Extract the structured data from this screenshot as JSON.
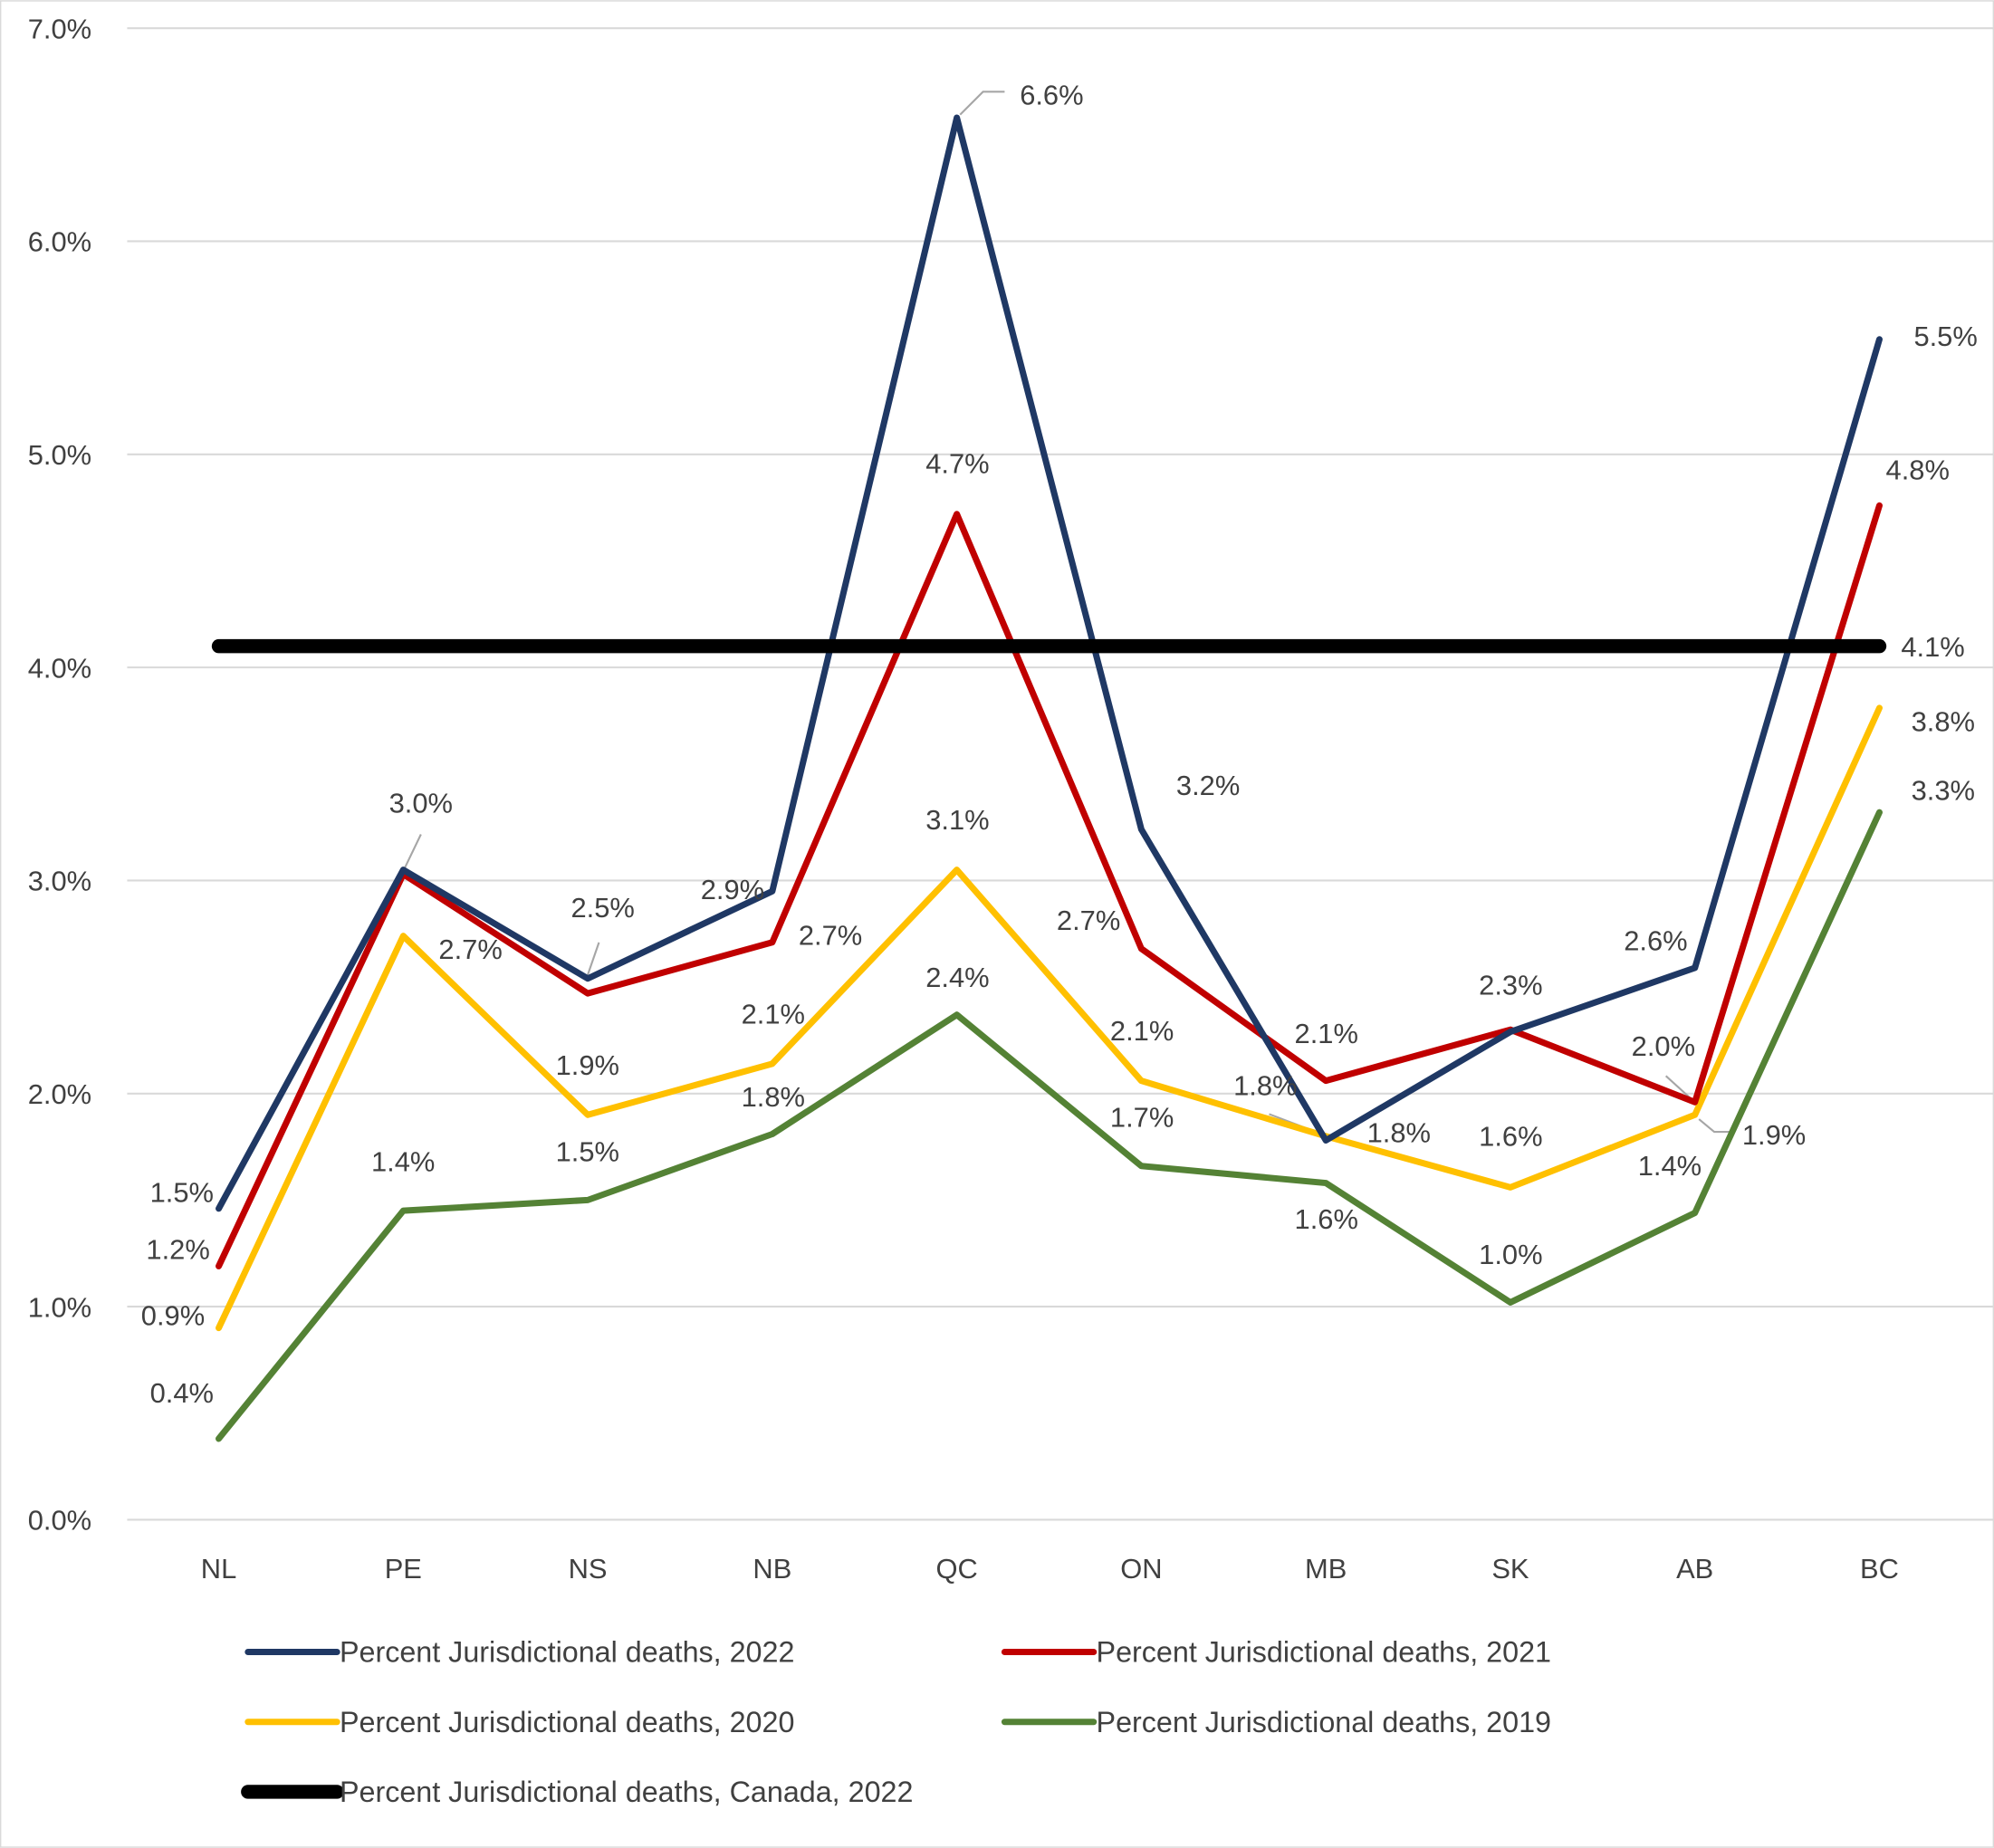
{
  "chart_data": {
    "type": "line",
    "title": "",
    "xlabel": "",
    "ylabel": "",
    "ylim": [
      0,
      7
    ],
    "y_ticks": [
      "0.0%",
      "1.0%",
      "2.0%",
      "3.0%",
      "4.0%",
      "5.0%",
      "6.0%",
      "7.0%"
    ],
    "y_tick_values": [
      0,
      1,
      2,
      3,
      4,
      5,
      6,
      7
    ],
    "grid": "horizontal",
    "legend_position": "bottom",
    "categories": [
      "NL",
      "PE",
      "NS",
      "NB",
      "QC",
      "ON",
      "MB",
      "SK",
      "AB",
      "BC"
    ],
    "series": [
      {
        "name": "Percent Jurisdictional deaths, 2022",
        "color": "#1F3864",
        "values": [
          1.46,
          3.05,
          2.54,
          2.95,
          6.58,
          3.24,
          1.78,
          2.29,
          2.59,
          5.54
        ],
        "labels": [
          "1.5%",
          "3.0%",
          "2.5%",
          "2.9%",
          "6.6%",
          "3.2%",
          "1.8%",
          "2.3%",
          "2.6%",
          "5.5%"
        ]
      },
      {
        "name": "Percent Jurisdictional deaths, 2021",
        "color": "#C00000",
        "values": [
          1.19,
          3.03,
          2.47,
          2.71,
          4.72,
          2.68,
          2.06,
          2.3,
          1.96,
          4.76
        ],
        "labels": [
          "1.2%",
          null,
          null,
          "2.7%",
          "4.7%",
          "2.7%",
          "2.1%",
          null,
          "2.0%",
          "4.8%"
        ]
      },
      {
        "name": "Percent Jurisdictional deaths, 2020",
        "color": "#FFC000",
        "values": [
          0.9,
          2.74,
          1.9,
          2.14,
          3.05,
          2.06,
          1.8,
          1.56,
          1.9,
          3.81
        ],
        "labels": [
          "0.9%",
          "2.7%",
          "1.9%",
          "2.1%",
          "3.1%",
          "2.1%",
          "1.8%",
          "1.6%",
          "1.9%",
          "3.8%"
        ]
      },
      {
        "name": "Percent Jurisdictional deaths, 2019",
        "color": "#548235",
        "values": [
          0.38,
          1.45,
          1.5,
          1.81,
          2.37,
          1.66,
          1.58,
          1.02,
          1.44,
          3.32
        ],
        "labels": [
          "0.4%",
          "1.4%",
          "1.5%",
          "1.8%",
          "2.4%",
          "1.7%",
          "1.6%",
          "1.0%",
          "1.4%",
          "3.3%"
        ]
      },
      {
        "name": "Percent Jurisdictional deaths, Canada, 2022",
        "color": "#000000",
        "values": [
          4.1,
          4.1,
          4.1,
          4.1,
          4.1,
          4.1,
          4.1,
          4.1,
          4.1,
          4.1
        ],
        "labels": [
          null,
          null,
          null,
          null,
          null,
          null,
          null,
          null,
          null,
          "4.1%"
        ]
      }
    ]
  }
}
